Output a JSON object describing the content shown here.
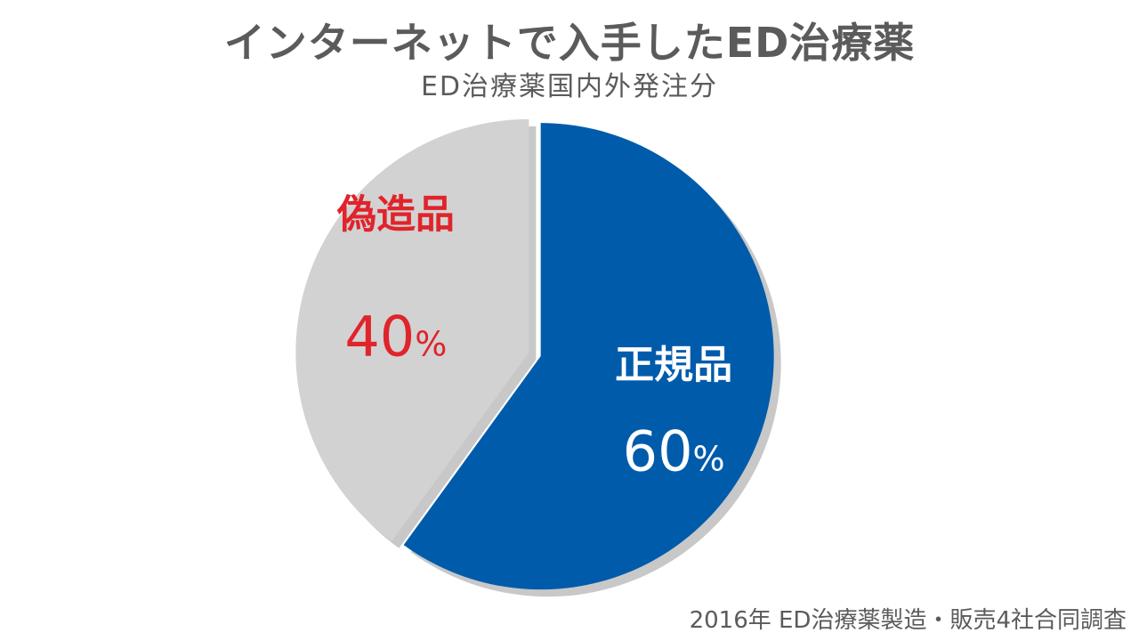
{
  "title": "インターネットで入手したED治療薬",
  "subtitle": "ED治療薬国内外発注分",
  "source": "2016年 ED治療薬製造・販売4社合同調査",
  "chart_data": {
    "type": "pie",
    "unit": "%",
    "slices": [
      {
        "label": "正規品",
        "value": 60,
        "display": "60",
        "color": "#005bab",
        "label_color": "#ffffff"
      },
      {
        "label": "偽造品",
        "value": 40,
        "display": "40",
        "color": "#d2d2d2",
        "label_color": "#e0242b"
      }
    ],
    "shadow_color": "#c8c8c8"
  }
}
